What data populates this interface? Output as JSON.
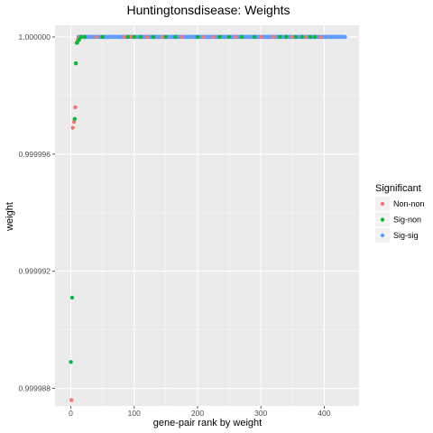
{
  "chart_data": {
    "type": "scatter",
    "title": "Huntingtonsdisease: Weights",
    "xlabel": "gene-pair rank by weight",
    "ylabel": "weight",
    "xlim": [
      -25,
      455
    ],
    "ylim": [
      0.9999874,
      1.0000004
    ],
    "x_ticks": [
      0,
      100,
      200,
      300,
      400
    ],
    "x_tick_labels": [
      "0",
      "100",
      "200",
      "300",
      "400"
    ],
    "y_ticks": [
      0.999988,
      0.999992,
      0.999996,
      1.0
    ],
    "y_tick_labels": [
      "0.999988",
      "0.999992",
      "0.999996",
      "1.000000"
    ],
    "grid": true,
    "legend": {
      "title": "Significant",
      "position": "right",
      "entries": [
        {
          "key": "Non-non",
          "label": "Non-non",
          "color": "#F8766D"
        },
        {
          "key": "Sig-non",
          "label": "Sig-non",
          "color": "#00BA38"
        },
        {
          "key": "Sig-sig",
          "label": "Sig-sig",
          "color": "#619CFF"
        }
      ]
    },
    "series": [
      {
        "name": "Non-non",
        "points": [
          [
            1,
            0.9999876
          ],
          [
            3,
            0.9999969
          ],
          [
            5,
            0.9999971
          ],
          [
            7,
            0.9999976
          ],
          [
            9,
            0.9999998
          ],
          [
            11,
            0.9999999
          ],
          [
            14,
            1.0
          ],
          [
            18,
            1.0
          ],
          [
            40,
            1.0
          ],
          [
            85,
            1.0
          ],
          [
            95,
            1.0
          ],
          [
            120,
            1.0
          ],
          [
            145,
            1.0
          ],
          [
            175,
            1.0
          ],
          [
            210,
            1.0
          ],
          [
            225,
            1.0
          ],
          [
            260,
            1.0
          ],
          [
            300,
            1.0
          ],
          [
            320,
            1.0
          ],
          [
            350,
            1.0
          ],
          [
            370,
            1.0
          ],
          [
            395,
            1.0
          ]
        ]
      },
      {
        "name": "Sig-non",
        "points": [
          [
            0,
            0.9999889
          ],
          [
            2,
            0.9999911
          ],
          [
            6,
            0.9999972
          ],
          [
            8,
            0.9999991
          ],
          [
            10,
            0.9999998
          ],
          [
            13,
            0.9999999
          ],
          [
            16,
            1.0
          ],
          [
            22,
            1.0
          ],
          [
            50,
            1.0
          ],
          [
            90,
            1.0
          ],
          [
            100,
            1.0
          ],
          [
            110,
            1.0
          ],
          [
            130,
            1.0
          ],
          [
            150,
            1.0
          ],
          [
            165,
            1.0
          ],
          [
            200,
            1.0
          ],
          [
            235,
            1.0
          ],
          [
            250,
            1.0
          ],
          [
            270,
            1.0
          ],
          [
            290,
            1.0
          ],
          [
            330,
            1.0
          ],
          [
            340,
            1.0
          ],
          [
            355,
            1.0
          ],
          [
            365,
            1.0
          ],
          [
            378,
            1.0
          ],
          [
            385,
            1.0
          ]
        ]
      },
      {
        "name": "Sig-sig",
        "x_range": [
          12,
          433
        ],
        "y": 1.0
      }
    ]
  }
}
